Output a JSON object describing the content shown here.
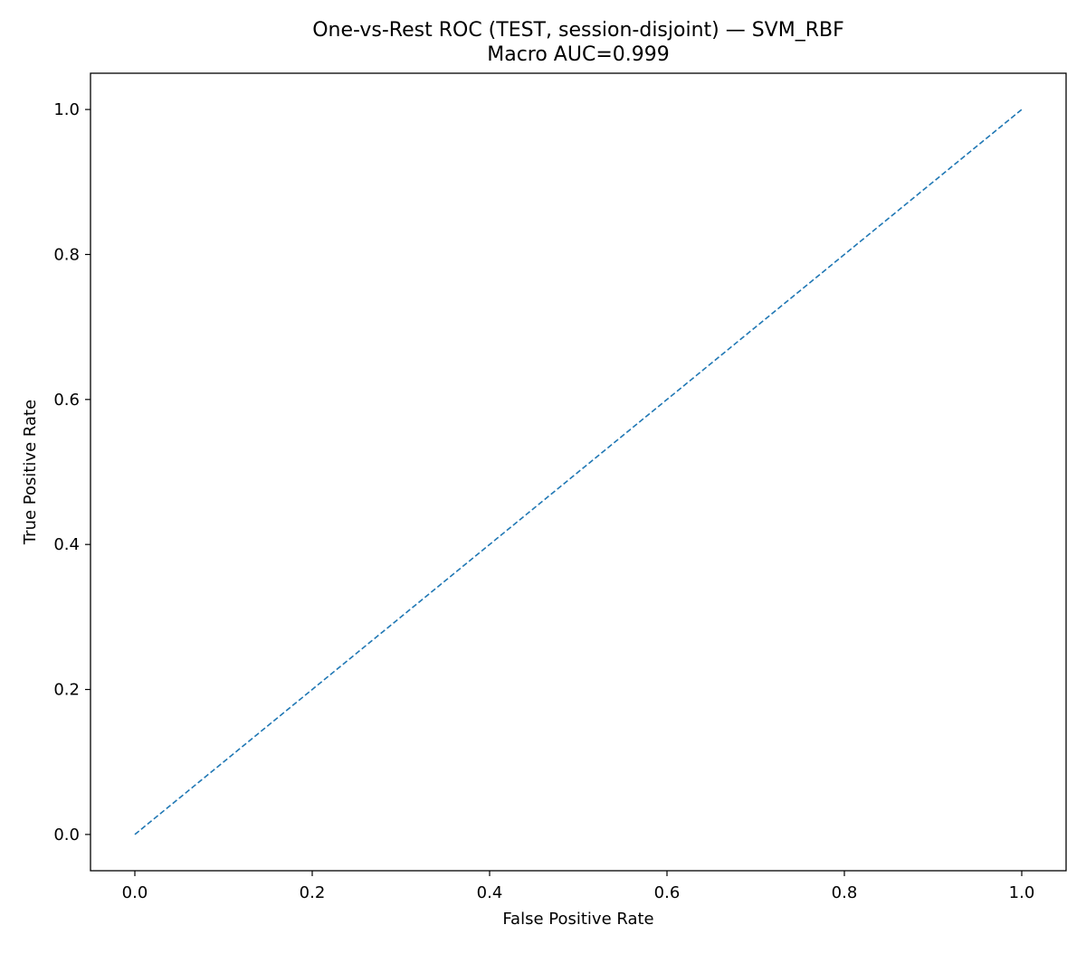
{
  "chart_data": {
    "type": "line",
    "title": "One-vs-Rest ROC (TEST, session-disjoint) — SVM_RBF",
    "subtitle": "Macro AUC=0.999",
    "xlabel": "False Positive Rate",
    "ylabel": "True Positive Rate",
    "xlim": [
      -0.05,
      1.05
    ],
    "ylim": [
      -0.05,
      1.05
    ],
    "grid": false,
    "x_ticks": [
      {
        "value": 0.0,
        "label": "0.0"
      },
      {
        "value": 0.2,
        "label": "0.2"
      },
      {
        "value": 0.4,
        "label": "0.4"
      },
      {
        "value": 0.6,
        "label": "0.6"
      },
      {
        "value": 0.8,
        "label": "0.8"
      },
      {
        "value": 1.0,
        "label": "1.0"
      }
    ],
    "y_ticks": [
      {
        "value": 0.0,
        "label": "0.0"
      },
      {
        "value": 0.2,
        "label": "0.2"
      },
      {
        "value": 0.4,
        "label": "0.4"
      },
      {
        "value": 0.6,
        "label": "0.6"
      },
      {
        "value": 0.8,
        "label": "0.8"
      },
      {
        "value": 1.0,
        "label": "1.0"
      }
    ],
    "series": [
      {
        "style": "dashed",
        "color": "#1f77b4",
        "x": [
          0.0,
          1.0
        ],
        "y": [
          0.0,
          1.0
        ]
      }
    ]
  }
}
